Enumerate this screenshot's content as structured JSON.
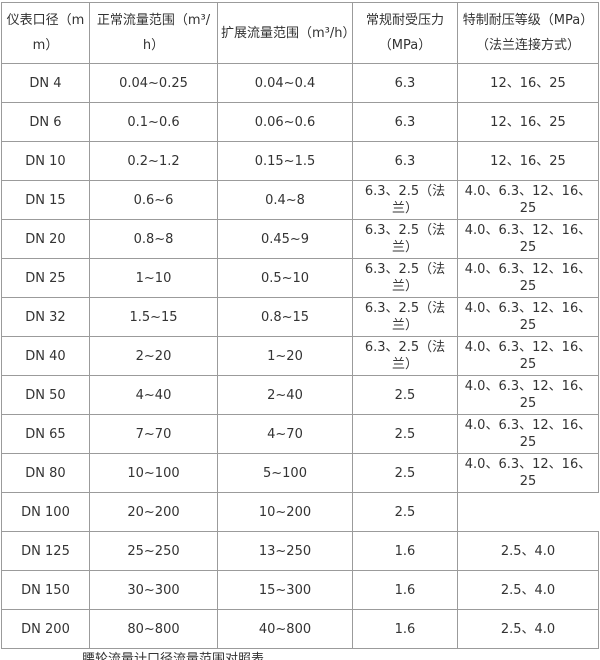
{
  "colors": {
    "text": "#333333",
    "border": "#9b9b9b",
    "background": "#ffffff"
  },
  "table": {
    "columns": [
      {
        "key": "dn",
        "label": "仪表口径（mm）"
      },
      {
        "key": "normal",
        "label": "正常流量范围（m³/h）"
      },
      {
        "key": "extended",
        "label": "扩展流量范围（m³/h）"
      },
      {
        "key": "pressure",
        "label": "常规耐受压力（MPa）"
      },
      {
        "key": "special",
        "label": "特制耐压等级（MPa）（法兰连接方式）"
      }
    ],
    "rows": [
      {
        "dn": "DN 4",
        "normal": "0.04~0.25",
        "extended": "0.04~0.4",
        "pressure": "6.3",
        "special": "12、16、25"
      },
      {
        "dn": "DN 6",
        "normal": "0.1~0.6",
        "extended": "0.06~0.6",
        "pressure": "6.3",
        "special": "12、16、25"
      },
      {
        "dn": "DN 10",
        "normal": "0.2~1.2",
        "extended": "0.15~1.5",
        "pressure": "6.3",
        "special": "12、16、25"
      },
      {
        "dn": "DN 15",
        "normal": "0.6~6",
        "extended": "0.4~8",
        "pressure": "6.3、2.5（法兰）",
        "special": "4.0、6.3、12、16、25"
      },
      {
        "dn": "DN 20",
        "normal": "0.8~8",
        "extended": "0.45~9",
        "pressure": "6.3、2.5（法兰）",
        "special": "4.0、6.3、12、16、25"
      },
      {
        "dn": "DN 25",
        "normal": "1~10",
        "extended": "0.5~10",
        "pressure": "6.3、2.5（法兰）",
        "special": "4.0、6.3、12、16、25"
      },
      {
        "dn": "DN 32",
        "normal": "1.5~15",
        "extended": "0.8~15",
        "pressure": "6.3、2.5（法兰）",
        "special": "4.0、6.3、12、16、25"
      },
      {
        "dn": "DN 40",
        "normal": "2~20",
        "extended": "1~20",
        "pressure": "6.3、2.5（法兰）",
        "special": "4.0、6.3、12、16、25"
      },
      {
        "dn": "DN 50",
        "normal": "4~40",
        "extended": "2~40",
        "pressure": "2.5",
        "special": "4.0、6.3、12、16、25"
      },
      {
        "dn": "DN 65",
        "normal": "7~70",
        "extended": "4~70",
        "pressure": "2.5",
        "special": "4.0、6.3、12、16、25"
      },
      {
        "dn": "DN 80",
        "normal": "10~100",
        "extended": "5~100",
        "pressure": "2.5",
        "special": "4.0、6.3、12、16、25"
      },
      {
        "dn": "DN 100",
        "normal": "20~200",
        "extended": "10~200",
        "pressure": "2.5",
        "special": null
      },
      {
        "dn": "DN 125",
        "normal": "25~250",
        "extended": "13~250",
        "pressure": "1.6",
        "special": "2.5、4.0"
      },
      {
        "dn": "DN 150",
        "normal": "30~300",
        "extended": "15~300",
        "pressure": "1.6",
        "special": "2.5、4.0"
      },
      {
        "dn": "DN 200",
        "normal": "80~800",
        "extended": "40~800",
        "pressure": "1.6",
        "special": "2.5、4.0"
      }
    ]
  },
  "caption_truncated": "腰轮流量计口径流量范围对照表"
}
